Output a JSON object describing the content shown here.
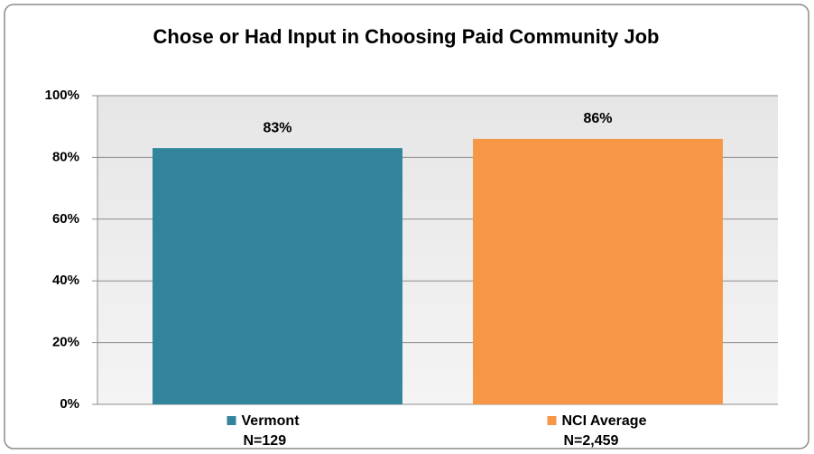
{
  "chart_data": {
    "type": "bar",
    "title": "Chose or Had Input in Choosing Paid Community Job",
    "categories": [
      "Vermont",
      "NCI Average"
    ],
    "category_notes": [
      "N=129",
      "N=2,459"
    ],
    "values": [
      83,
      86
    ],
    "value_labels": [
      "83%",
      "86%"
    ],
    "colors": [
      "#31849b",
      "#f79646"
    ],
    "ylim": [
      0,
      100
    ],
    "yticks": [
      {
        "value": 0,
        "label": "0%"
      },
      {
        "value": 20,
        "label": "20%"
      },
      {
        "value": 40,
        "label": "40%"
      },
      {
        "value": 60,
        "label": "60%"
      },
      {
        "value": 80,
        "label": "80%"
      },
      {
        "value": 100,
        "label": "100%"
      }
    ],
    "grid": true
  }
}
